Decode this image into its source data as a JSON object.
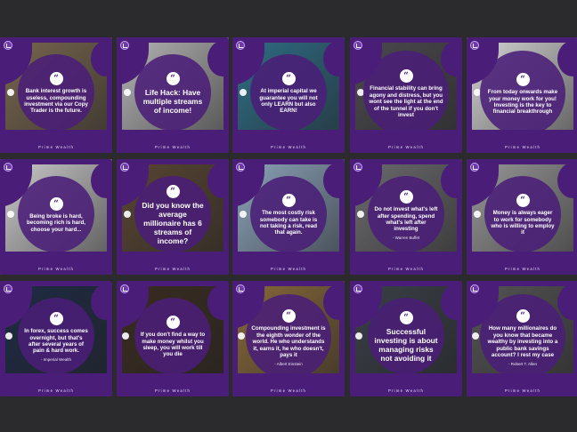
{
  "brand": "Prime Wealth",
  "colors": {
    "frame": "#4a1e78",
    "background": "#2b2b2d",
    "text": "#ffffff"
  },
  "icons": {
    "quote": "quote-mark-icon",
    "logo": "brand-logo-icon"
  },
  "quote_mark": "“",
  "tiles": [
    {
      "text": "Bank interest growth is useless, compounding investment via our Copy Trader is the future.",
      "author": "",
      "brand": "Prime Wealth",
      "bg": "#7a6850"
    },
    {
      "text": "Life Hack: Have multiple streams of income!",
      "author": "",
      "brand": "Prime Wealth",
      "bg": "#b8b8b8"
    },
    {
      "text": "At imperial capital we guarantee you will not only LEARN but also EARN!",
      "author": "",
      "brand": "Prime Wealth",
      "bg": "#2f6f88"
    },
    {
      "text": "Financial stability can bring agony and distress, but you wont see the light at the end of the tunnel if you don't invest",
      "author": "",
      "brand": "Prime Wealth",
      "bg": "#4c4a4f"
    },
    {
      "text": "From today onwards make your money work for you! Investing is the key to financial breakthrough",
      "author": "",
      "brand": "Prime Wealth",
      "bg": "#d9d9d9"
    },
    {
      "text": "Being broke is hard, becoming rich is hard, choose your hard...",
      "author": "",
      "brand": "Prime Wealth",
      "bg": "#cfcfcf"
    },
    {
      "text": "Did you know the average millionaire has 6 streams of income?",
      "author": "",
      "brand": "Prime Wealth",
      "bg": "#5a4632"
    },
    {
      "text": "The most costly risk somebody can take is not taking a risk, read that again.",
      "author": "",
      "brand": "Prime Wealth",
      "bg": "#8fa7be"
    },
    {
      "text": "Do not invest what's left after spending, spend what's left after investing",
      "author": "- Warren Buffet",
      "brand": "Prime Wealth",
      "bg": "#6d6d70"
    },
    {
      "text": "Money is always eager to work for somebody who is willing to employ it",
      "author": "",
      "brand": "Prime Wealth",
      "bg": "#9a9a9a"
    },
    {
      "text": "In forex, success comes overnight, but that's after several years of pain & hard work.",
      "author": "- Imperial Wealth",
      "brand": "Prime Wealth",
      "bg": "#1e2b45"
    },
    {
      "text": "If you don't find a way to make money whilst you sleep, you will work till you die",
      "author": "",
      "brand": "Prime Wealth",
      "bg": "#3a2c20"
    },
    {
      "text": "Compounding investment is the eighth wonder of the world. He who understands it, earns it, he who doesn't, pays it",
      "author": "- Albert Einstein",
      "brand": "Prime Wealth",
      "bg": "#8a6a3a"
    },
    {
      "text": "Successful investing is about managing risks not avoiding it",
      "author": "",
      "brand": "Prime Wealth",
      "bg": "#3a4048"
    },
    {
      "text": "How many millionaires do you know that became wealthy by investing into a public bank savings account? I rest my case",
      "author": "- Robert T. Allen",
      "brand": "Prime Wealth",
      "bg": "#555555"
    }
  ]
}
